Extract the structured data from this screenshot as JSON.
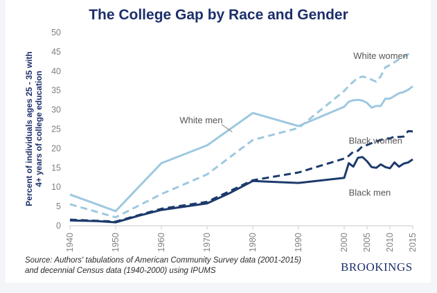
{
  "chart_data": {
    "type": "line",
    "title": "The College Gap by Race and Gender",
    "xlabel": "",
    "ylabel": "Percent of individuals ages 25 - 35 with 4+ years of college education",
    "xlim": [
      1940,
      2015
    ],
    "ylim": [
      0,
      50
    ],
    "yticks": [
      0,
      5,
      10,
      15,
      20,
      25,
      30,
      35,
      40,
      45,
      50
    ],
    "xticks": [
      1940,
      1950,
      1960,
      1970,
      1980,
      1990,
      2000,
      2005,
      2010,
      2015
    ],
    "grid": false,
    "series": [
      {
        "name": "White men",
        "color": "#9ec8e0",
        "dash": false,
        "points": [
          [
            1940,
            8.1
          ],
          [
            1950,
            3.8
          ],
          [
            1960,
            16.2
          ],
          [
            1970,
            20.8
          ],
          [
            1980,
            29.2
          ],
          [
            1990,
            25.8
          ],
          [
            2000,
            30.8
          ],
          [
            2001,
            32.1
          ],
          [
            2002,
            32.5
          ],
          [
            2003,
            32.6
          ],
          [
            2004,
            32.4
          ],
          [
            2005,
            31.8
          ],
          [
            2006,
            30.6
          ],
          [
            2007,
            31.0
          ],
          [
            2008,
            31.0
          ],
          [
            2009,
            32.9
          ],
          [
            2010,
            32.9
          ],
          [
            2011,
            33.6
          ],
          [
            2012,
            34.3
          ],
          [
            2013,
            34.6
          ],
          [
            2014,
            35.2
          ],
          [
            2015,
            36.1
          ]
        ]
      },
      {
        "name": "White women",
        "color": "#9ec8e0",
        "dash": true,
        "points": [
          [
            1940,
            5.6
          ],
          [
            1950,
            2.2
          ],
          [
            1960,
            8.2
          ],
          [
            1970,
            13.3
          ],
          [
            1980,
            22.2
          ],
          [
            1990,
            25.3
          ],
          [
            2000,
            34.9
          ],
          [
            2001,
            36.2
          ],
          [
            2002,
            37.3
          ],
          [
            2003,
            38.3
          ],
          [
            2004,
            38.6
          ],
          [
            2005,
            38.4
          ],
          [
            2006,
            37.8
          ],
          [
            2007,
            37.3
          ],
          [
            2008,
            38.7
          ],
          [
            2009,
            41.0
          ],
          [
            2010,
            41.6
          ],
          [
            2011,
            42.3
          ],
          [
            2012,
            43.1
          ],
          [
            2013,
            43.7
          ],
          [
            2014,
            44.4
          ],
          [
            2015,
            44.9
          ]
        ]
      },
      {
        "name": "Black women",
        "color": "#1c3a6c",
        "dash": true,
        "points": [
          [
            1940,
            1.6
          ],
          [
            1950,
            1.1
          ],
          [
            1960,
            4.4
          ],
          [
            1970,
            6.2
          ],
          [
            1980,
            11.8
          ],
          [
            1990,
            13.8
          ],
          [
            2000,
            17.4
          ],
          [
            2001,
            18.1
          ],
          [
            2002,
            19.2
          ],
          [
            2003,
            19.4
          ],
          [
            2004,
            20.6
          ],
          [
            2005,
            20.9
          ],
          [
            2006,
            21.4
          ],
          [
            2007,
            21.8
          ],
          [
            2008,
            22.2
          ],
          [
            2009,
            22.6
          ],
          [
            2010,
            22.6
          ],
          [
            2011,
            23.1
          ],
          [
            2012,
            23.0
          ],
          [
            2013,
            23.1
          ],
          [
            2014,
            24.5
          ],
          [
            2015,
            24.4
          ]
        ]
      },
      {
        "name": "Black men",
        "color": "#1c3a6c",
        "dash": false,
        "points": [
          [
            1940,
            1.4
          ],
          [
            1943,
            1.3
          ],
          [
            1946,
            1.2
          ],
          [
            1950,
            0.9
          ],
          [
            1955,
            2.6
          ],
          [
            1960,
            4.1
          ],
          [
            1970,
            5.8
          ],
          [
            1975,
            8.5
          ],
          [
            1980,
            11.6
          ],
          [
            1990,
            11.1
          ],
          [
            2000,
            12.4
          ],
          [
            2001,
            16.2
          ],
          [
            2002,
            15.3
          ],
          [
            2003,
            17.6
          ],
          [
            2004,
            17.8
          ],
          [
            2005,
            16.7
          ],
          [
            2006,
            15.2
          ],
          [
            2007,
            15.0
          ],
          [
            2008,
            15.9
          ],
          [
            2009,
            15.2
          ],
          [
            2010,
            14.9
          ],
          [
            2011,
            16.4
          ],
          [
            2012,
            15.3
          ],
          [
            2013,
            16.1
          ],
          [
            2014,
            16.4
          ],
          [
            2015,
            17.2
          ]
        ]
      }
    ],
    "annotations": [
      {
        "text": "White women",
        "x": 2002,
        "y": 43.2
      },
      {
        "text": "White men",
        "x": 1964,
        "y": 26.5
      },
      {
        "text": "Black women",
        "x": 2001,
        "y": 21.2
      },
      {
        "text": "Black men",
        "x": 2001,
        "y": 7.8
      }
    ]
  },
  "footer": {
    "source_line1": "Source: Authors' tabulations of American Community Survey data (2001-2015)",
    "source_line2": "and decennial Census data (1940-2000) using IPUMS",
    "brand": "BROOKINGS"
  },
  "ylabel_line1": "Percent of individuals ages 25 - 35 with",
  "ylabel_line2": "4+ years of college education"
}
